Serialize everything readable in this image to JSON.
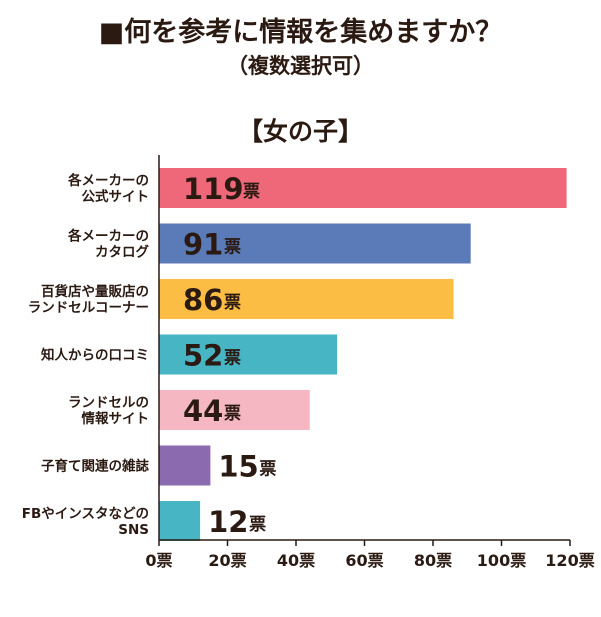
{
  "title": "■何を参考に情報を集めますか？",
  "subtitle": "（複数選択可）",
  "group_label": "【女の子】",
  "chart_data": {
    "type": "bar",
    "orientation": "horizontal",
    "categories": [
      [
        "各メーカーの",
        "公式サイト"
      ],
      [
        "各メーカーの",
        "カタログ"
      ],
      [
        "百貨店や量販店の",
        "ランドセルコーナー"
      ],
      [
        "知人からの口コミ"
      ],
      [
        "ランドセルの",
        "情報サイト"
      ],
      [
        "子育て関連の雑誌"
      ],
      [
        "FBやインスタなどの",
        "SNS"
      ]
    ],
    "values": [
      119,
      91,
      86,
      52,
      44,
      15,
      12
    ],
    "value_unit": "票",
    "colors": [
      "#ee6879",
      "#5b7ab8",
      "#fbbd43",
      "#47b5c4",
      "#f5b7c2",
      "#8c6aaf",
      "#47b5c4"
    ],
    "xlim": [
      0,
      120
    ],
    "xticks": [
      0,
      20,
      40,
      60,
      80,
      100,
      120
    ],
    "xtick_labels": [
      "0票",
      "20票",
      "40票",
      "60票",
      "80票",
      "100票",
      "120票"
    ],
    "grid": false,
    "legend": "none"
  }
}
